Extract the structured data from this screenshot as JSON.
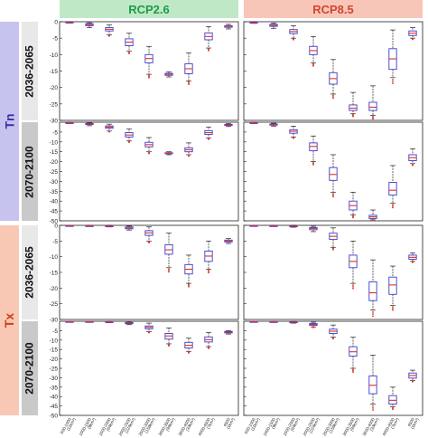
{
  "headers": {
    "left": "RCP2.6",
    "right": "RCP8.5"
  },
  "variables": {
    "tn": "Tn",
    "tx": "Tx"
  },
  "periods": {
    "p1": "2036-2065",
    "p2": "2070-2100"
  },
  "chart_data": {
    "type": "box",
    "categories": [
      "500-1000 (11km²)",
      "1000-1500 (9km²)",
      "1500-2000 (64km²)",
      "2000-2500 (224km²)",
      "2500-3000 (158km²)",
      "3000-3500 (94km²)",
      "3500-4000 (33km²)",
      "4000-4500 (7km²)",
      "4500 (1km²)"
    ],
    "category_labels": [
      [
        "500-1000",
        "(11km²)"
      ],
      [
        "1000-1500",
        "(9km²)"
      ],
      [
        "1500-2000",
        "(64km²)"
      ],
      [
        "2000-2500",
        "(224km²)"
      ],
      [
        "2500-3000",
        "(158km²)"
      ],
      [
        "3000-3500",
        "(94km²)"
      ],
      [
        "3500-4000",
        "(33km²)"
      ],
      [
        "4000-4500",
        "(7km²)"
      ],
      [
        "4500",
        "(1km²)"
      ]
    ],
    "colors": {
      "box": "#3a3ad0",
      "median": "#e0302a",
      "outlier": "#e0302a",
      "whisker": "#222222"
    },
    "panels": [
      {
        "variable": "Tn",
        "period": "2036-2065",
        "scenario": "RCP2.6",
        "ylim": [
          -30,
          0
        ],
        "yticks": [
          0,
          -5,
          -10,
          -15,
          -20,
          -25,
          -30
        ],
        "boxes": [
          {
            "min": -0.4,
            "q1": -0.3,
            "med": -0.2,
            "q3": -0.1,
            "max": 0
          },
          {
            "min": -1.8,
            "q1": -1.2,
            "med": -0.9,
            "q3": -0.6,
            "max": -0.3
          },
          {
            "min": -4.0,
            "q1": -2.8,
            "med": -2.3,
            "q3": -1.8,
            "max": -1.0
          },
          {
            "min": -9.0,
            "q1": -7.3,
            "med": -6.2,
            "q3": -5.2,
            "max": -3.5
          },
          {
            "min": -16.0,
            "q1": -12.5,
            "med": -11.2,
            "q3": -10.0,
            "max": -7.5
          },
          {
            "min": -16.8,
            "q1": -16.3,
            "med": -16.0,
            "q3": -15.7,
            "max": -15.2
          },
          {
            "min": -18.0,
            "q1": -15.8,
            "med": -14.3,
            "q3": -12.8,
            "max": -9.5
          },
          {
            "min": -8.0,
            "q1": -5.5,
            "med": -4.5,
            "q3": -3.4,
            "max": -1.5
          },
          {
            "min": -2.2,
            "q1": -1.7,
            "med": -1.4,
            "q3": -1.2,
            "max": -0.8
          }
        ]
      },
      {
        "variable": "Tn",
        "period": "2036-2065",
        "scenario": "RCP8.5",
        "ylim": [
          -30,
          0
        ],
        "yticks": [
          0,
          -5,
          -10,
          -15,
          -20,
          -25,
          -30
        ],
        "boxes": [
          {
            "min": -0.5,
            "q1": -0.35,
            "med": -0.25,
            "q3": -0.15,
            "max": 0
          },
          {
            "min": -2.0,
            "q1": -1.4,
            "med": -1.1,
            "q3": -0.8,
            "max": -0.4
          },
          {
            "min": -5.0,
            "q1": -3.6,
            "med": -3.0,
            "q3": -2.4,
            "max": -1.2
          },
          {
            "min": -12.5,
            "q1": -10.0,
            "med": -8.8,
            "q3": -7.5,
            "max": -4.5
          },
          {
            "min": -22.0,
            "q1": -19.0,
            "med": -17.3,
            "q3": -15.5,
            "max": -11.5
          },
          {
            "min": -28.0,
            "q1": -27.0,
            "med": -26.3,
            "q3": -25.3,
            "max": -21.5
          },
          {
            "min": -28.5,
            "q1": -27.0,
            "med": -26.0,
            "q3": -24.5,
            "max": -19.5
          },
          {
            "min": -17.0,
            "q1": -14.5,
            "med": -11.3,
            "q3": -8.2,
            "max": -2.5
          },
          {
            "min": -5.0,
            "q1": -4.2,
            "med": -3.5,
            "q3": -2.8,
            "max": -1.8
          }
        ]
      },
      {
        "variable": "Tn",
        "period": "2070-2100",
        "scenario": "RCP2.6",
        "ylim": [
          -50,
          0
        ],
        "yticks": [
          -5,
          -10,
          -15,
          -20,
          -25,
          -30,
          -35,
          -40,
          -45,
          -50
        ],
        "boxes": [
          {
            "min": -0.6,
            "q1": -0.4,
            "med": -0.3,
            "q3": -0.2,
            "max": 0
          },
          {
            "min": -1.8,
            "q1": -1.2,
            "med": -0.9,
            "q3": -0.6,
            "max": -0.3
          },
          {
            "min": -4.5,
            "q1": -3.1,
            "med": -2.5,
            "q3": -1.9,
            "max": -1.0
          },
          {
            "min": -9.5,
            "q1": -7.5,
            "med": -6.5,
            "q3": -5.3,
            "max": -3.5
          },
          {
            "min": -15.0,
            "q1": -12.5,
            "med": -11.4,
            "q3": -10.2,
            "max": -7.8
          },
          {
            "min": -16.5,
            "q1": -16.0,
            "med": -15.8,
            "q3": -15.5,
            "max": -15.0
          },
          {
            "min": -16.5,
            "q1": -15.0,
            "med": -14.0,
            "q3": -13.0,
            "max": -10.5
          },
          {
            "min": -8.0,
            "q1": -6.2,
            "med": -5.3,
            "q3": -4.3,
            "max": -2.5
          },
          {
            "min": -2.2,
            "q1": -1.7,
            "med": -1.4,
            "q3": -1.1,
            "max": -0.7
          }
        ]
      },
      {
        "variable": "Tn",
        "period": "2070-2100",
        "scenario": "RCP8.5",
        "ylim": [
          -50,
          0
        ],
        "yticks": [
          -5,
          -10,
          -15,
          -20,
          -25,
          -30,
          -35,
          -40,
          -45,
          -50
        ],
        "boxes": [
          {
            "min": -0.6,
            "q1": -0.4,
            "med": -0.3,
            "q3": -0.2,
            "max": 0
          },
          {
            "min": -2.0,
            "q1": -1.5,
            "med": -1.2,
            "q3": -0.9,
            "max": -0.5
          },
          {
            "min": -7.5,
            "q1": -5.6,
            "med": -4.6,
            "q3": -3.8,
            "max": -2.0
          },
          {
            "min": -20.0,
            "q1": -14.5,
            "med": -12.3,
            "q3": -10.5,
            "max": -7.0
          },
          {
            "min": -35.5,
            "q1": -29.5,
            "med": -26.5,
            "q3": -23.0,
            "max": -16.5
          },
          {
            "min": -47.0,
            "q1": -44.5,
            "med": -42.3,
            "q3": -40.0,
            "max": -35.5
          },
          {
            "min": -49.5,
            "q1": -48.8,
            "med": -48.0,
            "q3": -47.2,
            "max": -44.5
          },
          {
            "min": -41.0,
            "q1": -37.0,
            "med": -34.5,
            "q3": -30.5,
            "max": -22.0
          },
          {
            "min": -21.0,
            "q1": -19.5,
            "med": -18.0,
            "q3": -16.5,
            "max": -13.5
          }
        ]
      },
      {
        "variable": "Tx",
        "period": "2036-2065",
        "scenario": "RCP2.6",
        "ylim": [
          -30,
          0
        ],
        "yticks": [
          0,
          -5,
          -10,
          -15,
          -20,
          -25,
          -30
        ],
        "boxes": [
          {
            "min": -0.2,
            "q1": -0.15,
            "med": -0.1,
            "q3": -0.05,
            "max": 0
          },
          {
            "min": -0.3,
            "q1": -0.2,
            "med": -0.15,
            "q3": -0.1,
            "max": 0
          },
          {
            "min": -0.5,
            "q1": -0.35,
            "med": -0.25,
            "q3": -0.15,
            "max": 0
          },
          {
            "min": -1.5,
            "q1": -1.1,
            "med": -0.8,
            "q3": -0.5,
            "max": -0.2
          },
          {
            "min": -5.0,
            "q1": -3.2,
            "med": -2.4,
            "q3": -1.7,
            "max": -0.5
          },
          {
            "min": -13.5,
            "q1": -9.2,
            "med": -7.8,
            "q3": -6.2,
            "max": -2.5
          },
          {
            "min": -18.5,
            "q1": -15.5,
            "med": -14.0,
            "q3": -12.5,
            "max": -9.5
          },
          {
            "min": -14.0,
            "q1": -11.5,
            "med": -9.8,
            "q3": -8.2,
            "max": -5.0
          },
          {
            "min": -5.8,
            "q1": -5.3,
            "med": -5.0,
            "q3": -4.7,
            "max": -4.2
          }
        ]
      },
      {
        "variable": "Tx",
        "period": "2036-2065",
        "scenario": "RCP8.5",
        "ylim": [
          -30,
          0
        ],
        "yticks": [
          0,
          -5,
          -10,
          -15,
          -20,
          -25,
          -30
        ],
        "boxes": [
          {
            "min": -0.2,
            "q1": -0.15,
            "med": -0.1,
            "q3": -0.05,
            "max": 0
          },
          {
            "min": -0.3,
            "q1": -0.2,
            "med": -0.15,
            "q3": -0.1,
            "max": 0
          },
          {
            "min": -0.6,
            "q1": -0.4,
            "med": -0.3,
            "q3": -0.2,
            "max": 0
          },
          {
            "min": -2.0,
            "q1": -1.4,
            "med": -1.0,
            "q3": -0.7,
            "max": -0.3
          },
          {
            "min": -7.0,
            "q1": -4.5,
            "med": -3.5,
            "q3": -2.5,
            "max": -0.8
          },
          {
            "min": -18.5,
            "q1": -13.5,
            "med": -11.5,
            "q3": -9.5,
            "max": -5.0
          },
          {
            "min": -27.0,
            "q1": -24.0,
            "med": -21.5,
            "q3": -18.0,
            "max": -11.0
          },
          {
            "min": -25.5,
            "q1": -22.0,
            "med": -19.0,
            "q3": -16.5,
            "max": -13.0
          },
          {
            "min": -11.5,
            "q1": -10.8,
            "med": -10.2,
            "q3": -9.5,
            "max": -8.8
          }
        ]
      },
      {
        "variable": "Tx",
        "period": "2070-2100",
        "scenario": "RCP2.6",
        "ylim": [
          -50,
          0
        ],
        "yticks": [
          -5,
          -10,
          -15,
          -20,
          -25,
          -30,
          -35,
          -40,
          -45,
          -50
        ],
        "boxes": [
          {
            "min": -0.3,
            "q1": -0.2,
            "med": -0.15,
            "q3": -0.1,
            "max": 0
          },
          {
            "min": -0.4,
            "q1": -0.3,
            "med": -0.2,
            "q3": -0.1,
            "max": 0
          },
          {
            "min": -0.7,
            "q1": -0.5,
            "med": -0.35,
            "q3": -0.2,
            "max": 0
          },
          {
            "min": -1.8,
            "q1": -1.3,
            "med": -1.0,
            "q3": -0.6,
            "max": -0.2
          },
          {
            "min": -5.5,
            "q1": -4.0,
            "med": -3.2,
            "q3": -2.5,
            "max": -1.0
          },
          {
            "min": -12.0,
            "q1": -9.5,
            "med": -7.8,
            "q3": -6.5,
            "max": -3.5
          },
          {
            "min": -16.0,
            "q1": -14.2,
            "med": -12.8,
            "q3": -11.2,
            "max": -9.0
          },
          {
            "min": -13.5,
            "q1": -11.0,
            "med": -9.8,
            "q3": -8.3,
            "max": -6.0
          },
          {
            "min": -6.8,
            "q1": -6.2,
            "med": -5.8,
            "q3": -5.4,
            "max": -5.0
          }
        ]
      },
      {
        "variable": "Tx",
        "period": "2070-2100",
        "scenario": "RCP8.5",
        "ylim": [
          -50,
          0
        ],
        "yticks": [
          -5,
          -10,
          -15,
          -20,
          -25,
          -30,
          -35,
          -40,
          -45,
          -50
        ],
        "boxes": [
          {
            "min": -0.3,
            "q1": -0.2,
            "med": -0.15,
            "q3": -0.1,
            "max": 0
          },
          {
            "min": -0.5,
            "q1": -0.35,
            "med": -0.25,
            "q3": -0.15,
            "max": 0
          },
          {
            "min": -1.0,
            "q1": -0.7,
            "med": -0.5,
            "q3": -0.3,
            "max": 0
          },
          {
            "min": -3.0,
            "q1": -2.2,
            "med": -1.7,
            "q3": -1.2,
            "max": -0.5
          },
          {
            "min": -8.5,
            "q1": -6.5,
            "med": -5.3,
            "q3": -4.2,
            "max": -2.0
          },
          {
            "min": -25.0,
            "q1": -18.5,
            "med": -16.2,
            "q3": -13.5,
            "max": -8.5
          },
          {
            "min": -44.0,
            "q1": -38.5,
            "med": -34.0,
            "q3": -29.0,
            "max": -18.0
          },
          {
            "min": -45.5,
            "q1": -44.0,
            "med": -42.0,
            "q3": -39.5,
            "max": -35.0
          },
          {
            "min": -31.5,
            "q1": -30.2,
            "med": -28.8,
            "q3": -27.5,
            "max": -26.0
          }
        ]
      }
    ]
  }
}
